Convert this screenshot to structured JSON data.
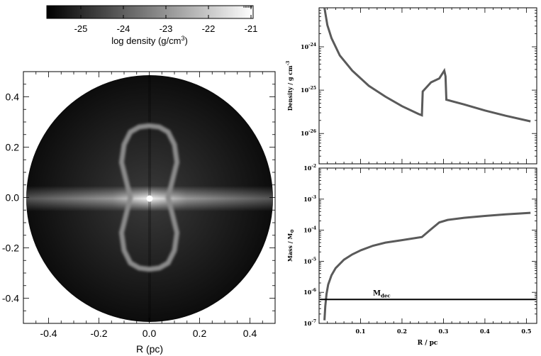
{
  "colorbar": {
    "ticks": [
      "-25",
      "-24",
      "-23",
      "-22",
      "-21"
    ],
    "tick_values": [
      -25,
      -24,
      -23,
      -22,
      -21
    ],
    "range": [
      -25.8,
      -20.95
    ],
    "label_main": "log density (g/cm",
    "label_sup": "3",
    "label_close": ")"
  },
  "chart_data": [
    {
      "type": "heatmap",
      "xlabel": "R (pc)",
      "ylabel": "",
      "xlim": [
        -0.5,
        0.5
      ],
      "ylim": [
        -0.5,
        0.5
      ],
      "xticks": [
        "-0.4",
        "-0.2",
        "0.0",
        "0.2",
        "0.4"
      ],
      "xtick_values": [
        -0.4,
        -0.2,
        0.0,
        0.2,
        0.4
      ],
      "yticks": [
        "0.4",
        "0.2",
        "0.0",
        "-0.2",
        "-0.4"
      ],
      "ytick_values": [
        0.4,
        0.2,
        0.0,
        -0.2,
        -0.4
      ],
      "disk_radius_pc": 0.5,
      "shell_outline_pc": [
        [
          0.0,
          0.285
        ],
        [
          0.04,
          0.28
        ],
        [
          0.075,
          0.26
        ],
        [
          0.1,
          0.21
        ],
        [
          0.11,
          0.14
        ],
        [
          0.09,
          0.06
        ],
        [
          0.075,
          0.0
        ],
        [
          0.09,
          -0.06
        ],
        [
          0.11,
          -0.14
        ],
        [
          0.1,
          -0.21
        ],
        [
          0.075,
          -0.26
        ],
        [
          0.04,
          -0.28
        ],
        [
          0.0,
          -0.285
        ]
      ],
      "colors": {
        "background": "#141414",
        "shell": "#8a8a8a",
        "midplane": "#e0e0e0",
        "star": "#ffffff"
      }
    },
    {
      "type": "line",
      "xlabel": "",
      "ylabel_main": "Density / g cm",
      "ylabel_sup": "-3",
      "xlim": [
        0,
        0.525
      ],
      "log_y": true,
      "ylim_log10": [
        -26.7,
        -23.1
      ],
      "yticks": [
        {
          "base": "10",
          "exp": "-24",
          "value": -24
        },
        {
          "base": "10",
          "exp": "-25",
          "value": -25
        },
        {
          "base": "10",
          "exp": "-26",
          "value": -26
        }
      ],
      "series": [
        {
          "color": "#5a5a5a",
          "x": [
            0.013,
            0.02,
            0.03,
            0.05,
            0.08,
            0.12,
            0.16,
            0.2,
            0.24,
            0.248,
            0.25,
            0.27,
            0.29,
            0.302,
            0.305,
            0.307,
            0.35,
            0.4,
            0.45,
            0.51
          ],
          "log10_y": [
            -23.1,
            -23.5,
            -23.8,
            -24.2,
            -24.55,
            -24.9,
            -25.15,
            -25.37,
            -25.55,
            -25.58,
            -25.03,
            -24.82,
            -24.73,
            -24.55,
            -24.68,
            -25.22,
            -25.33,
            -25.47,
            -25.59,
            -25.72
          ]
        }
      ]
    },
    {
      "type": "line",
      "xlabel_main": "R / pc",
      "ylabel_main": "Mass / M",
      "ylabel_sub": "⊙",
      "xlim": [
        0,
        0.525
      ],
      "log_y": true,
      "ylim_log10": [
        -7.0,
        -2.0
      ],
      "xticks": [
        "0.1",
        "0.2",
        "0.3",
        "0.4",
        "0.5"
      ],
      "xtick_values": [
        0.1,
        0.2,
        0.3,
        0.4,
        0.5
      ],
      "yticks": [
        {
          "base": "10",
          "exp": "-2",
          "value": -2
        },
        {
          "base": "10",
          "exp": "-3",
          "value": -3
        },
        {
          "base": "10",
          "exp": "-4",
          "value": -4
        },
        {
          "base": "10",
          "exp": "-5",
          "value": -5
        },
        {
          "base": "10",
          "exp": "-6",
          "value": -6
        },
        {
          "base": "10",
          "exp": "-7",
          "value": -7
        }
      ],
      "series": [
        {
          "color": "#5a5a5a",
          "x": [
            0.013,
            0.015,
            0.018,
            0.022,
            0.03,
            0.04,
            0.06,
            0.08,
            0.1,
            0.13,
            0.16,
            0.2,
            0.248,
            0.27,
            0.29,
            0.31,
            0.35,
            0.4,
            0.45,
            0.51
          ],
          "log10_y": [
            -6.9,
            -6.45,
            -6.05,
            -5.75,
            -5.45,
            -5.22,
            -4.95,
            -4.78,
            -4.65,
            -4.5,
            -4.4,
            -4.32,
            -4.22,
            -3.97,
            -3.75,
            -3.67,
            -3.6,
            -3.54,
            -3.49,
            -3.44
          ]
        }
      ],
      "reference_line": {
        "log10_y": -6.23,
        "label_main": "M",
        "label_sub": "dec",
        "color": "#000000"
      }
    }
  ]
}
